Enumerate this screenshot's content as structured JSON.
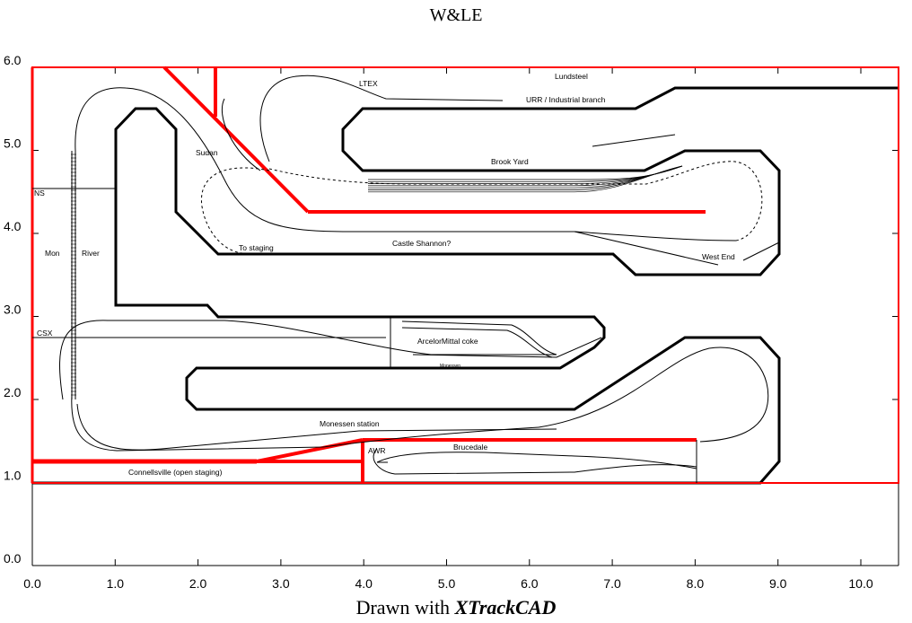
{
  "title": "W&LE",
  "footer": {
    "prefix": "Drawn with ",
    "brand": "XTrackCAD"
  },
  "axes": {
    "x_ticks": [
      "0.0",
      "1.0",
      "2.0",
      "3.0",
      "4.0",
      "5.0",
      "6.0",
      "7.0",
      "8.0",
      "9.0",
      "10.0"
    ],
    "y_ticks": [
      "0.0",
      "1.0",
      "2.0",
      "3.0",
      "4.0",
      "5.0",
      "6.0"
    ],
    "x_range": [
      0,
      10.5
    ],
    "y_range": [
      0,
      6.0
    ]
  },
  "colors": {
    "benchwork": "#000000",
    "walls": "#ff0000",
    "track": "#000000",
    "background": "#ffffff"
  },
  "labels": {
    "ltex": "LTEX",
    "lundsteel": "Lundsteel",
    "urr": "URR / Industrial branch",
    "sudan": "Sudan",
    "brook_yard": "Brook Yard",
    "ns": "NS",
    "mon": "Mon",
    "river": "River",
    "to_staging": "To staging",
    "castle_shannon": "Castle Shannon?",
    "west_end": "West End",
    "csx": "CSX",
    "arcelor": "ArcelorMittal coke",
    "monessen_small": "Monessen",
    "monessen_station": "Monessen station",
    "awr": "AWR",
    "brucedale": "Brucedale",
    "connellsville": "Connellsville (open staging)"
  }
}
